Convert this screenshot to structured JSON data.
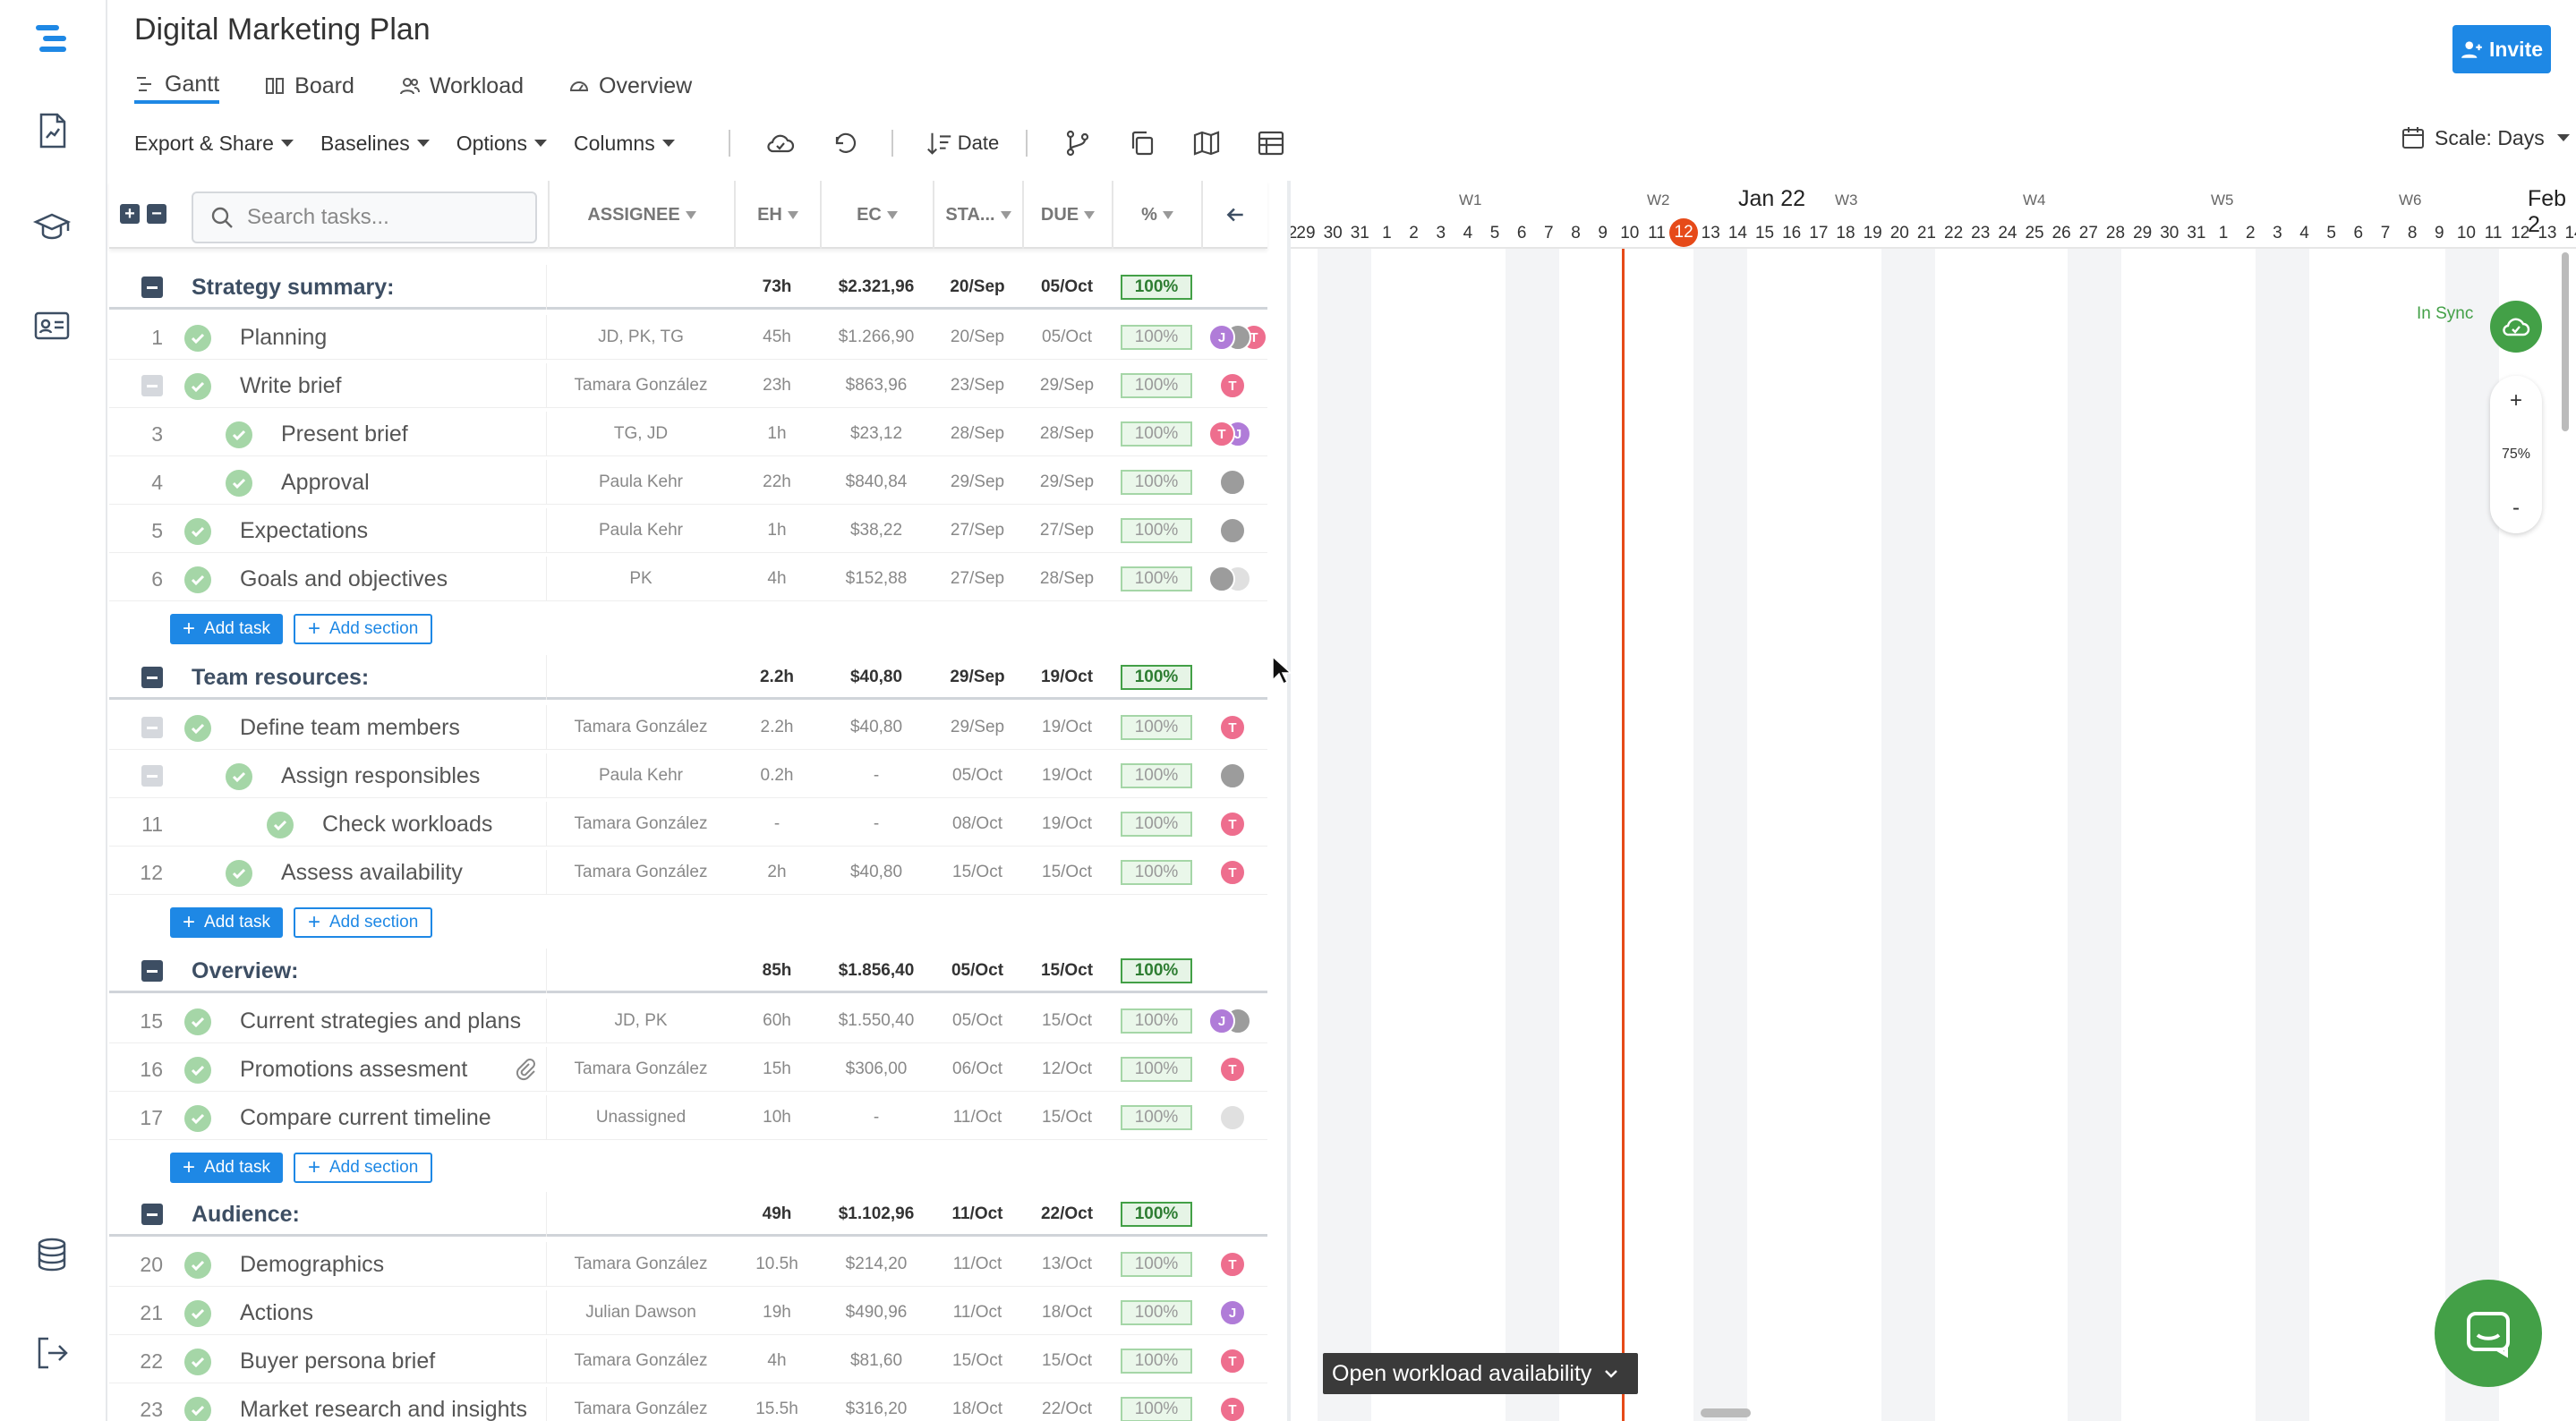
{
  "app": {
    "title": "Digital Marketing Plan",
    "invite_label": "Invite"
  },
  "tabs": [
    {
      "label": "Gantt",
      "active": true
    },
    {
      "label": "Board",
      "active": false
    },
    {
      "label": "Workload",
      "active": false
    },
    {
      "label": "Overview",
      "active": false
    }
  ],
  "toolbar": {
    "export_label": "Export & Share",
    "baselines_label": "Baselines",
    "options_label": "Options",
    "columns_label": "Columns",
    "sort_label": "Date",
    "scale_label": "Scale: Days"
  },
  "grid": {
    "search_placeholder": "Search tasks...",
    "columns": {
      "assignee": "ASSIGNEE",
      "eh": "EH",
      "ec": "EC",
      "start": "STA...",
      "due": "DUE",
      "pct": "%"
    },
    "add_task_label": "Add task",
    "add_section_label": "Add section"
  },
  "rows": [
    {
      "type": "section",
      "name": "Strategy summary:",
      "eh": "73h",
      "ec": "$2.321,96",
      "start": "20/Sep",
      "due": "05/Oct",
      "pct": "100%"
    },
    {
      "type": "task",
      "num": "1",
      "name": "Planning",
      "level": 0,
      "assignee": "JD, PK, TG",
      "eh": "45h",
      "ec": "$1.266,90",
      "start": "20/Sep",
      "due": "05/Oct",
      "pct": "100%",
      "avatars": [
        "j",
        "p",
        "t"
      ]
    },
    {
      "type": "task",
      "num": "",
      "name": "Write brief",
      "level": 0,
      "collapse": true,
      "assignee": "Tamara González",
      "eh": "23h",
      "ec": "$863,96",
      "start": "23/Sep",
      "due": "29/Sep",
      "pct": "100%",
      "avatars": [
        "t"
      ]
    },
    {
      "type": "task",
      "num": "3",
      "name": "Present brief",
      "level": 1,
      "assignee": "TG, JD",
      "eh": "1h",
      "ec": "$23,12",
      "start": "28/Sep",
      "due": "28/Sep",
      "pct": "100%",
      "avatars": [
        "t",
        "j"
      ]
    },
    {
      "type": "task",
      "num": "4",
      "name": "Approval",
      "level": 1,
      "assignee": "Paula Kehr",
      "eh": "22h",
      "ec": "$840,84",
      "start": "29/Sep",
      "due": "29/Sep",
      "pct": "100%",
      "avatars": [
        "p"
      ]
    },
    {
      "type": "task",
      "num": "5",
      "name": "Expectations",
      "level": 0,
      "assignee": "Paula Kehr",
      "eh": "1h",
      "ec": "$38,22",
      "start": "27/Sep",
      "due": "27/Sep",
      "pct": "100%",
      "avatars": [
        "p"
      ]
    },
    {
      "type": "task",
      "num": "6",
      "name": "Goals and objectives",
      "level": 0,
      "assignee": "PK",
      "eh": "4h",
      "ec": "$152,88",
      "start": "27/Sep",
      "due": "28/Sep",
      "pct": "100%",
      "avatars": [
        "p",
        "u"
      ]
    },
    {
      "type": "add"
    },
    {
      "type": "section",
      "name": "Team resources:",
      "eh": "2.2h",
      "ec": "$40,80",
      "start": "29/Sep",
      "due": "19/Oct",
      "pct": "100%"
    },
    {
      "type": "task",
      "num": "",
      "name": "Define team members",
      "level": 0,
      "collapse": true,
      "assignee": "Tamara González",
      "eh": "2.2h",
      "ec": "$40,80",
      "start": "29/Sep",
      "due": "19/Oct",
      "pct": "100%",
      "avatars": [
        "t"
      ]
    },
    {
      "type": "task",
      "num": "",
      "name": "Assign responsibles",
      "level": 1,
      "collapse": true,
      "assignee": "Paula Kehr",
      "eh": "0.2h",
      "ec": "-",
      "start": "05/Oct",
      "due": "19/Oct",
      "pct": "100%",
      "avatars": [
        "p"
      ]
    },
    {
      "type": "task",
      "num": "11",
      "name": "Check workloads",
      "level": 2,
      "assignee": "Tamara González",
      "eh": "-",
      "ec": "-",
      "start": "08/Oct",
      "due": "19/Oct",
      "pct": "100%",
      "avatars": [
        "t"
      ]
    },
    {
      "type": "task",
      "num": "12",
      "name": "Assess availability",
      "level": 1,
      "assignee": "Tamara González",
      "eh": "2h",
      "ec": "$40,80",
      "start": "15/Oct",
      "due": "15/Oct",
      "pct": "100%",
      "avatars": [
        "t"
      ]
    },
    {
      "type": "add"
    },
    {
      "type": "section",
      "name": "Overview:",
      "eh": "85h",
      "ec": "$1.856,40",
      "start": "05/Oct",
      "due": "15/Oct",
      "pct": "100%"
    },
    {
      "type": "task",
      "num": "15",
      "name": "Current strategies and plans",
      "level": 0,
      "assignee": "JD, PK",
      "eh": "60h",
      "ec": "$1.550,40",
      "start": "05/Oct",
      "due": "15/Oct",
      "pct": "100%",
      "avatars": [
        "j",
        "p"
      ]
    },
    {
      "type": "task",
      "num": "16",
      "name": "Promotions assesment",
      "level": 0,
      "attachment": true,
      "assignee": "Tamara González",
      "eh": "15h",
      "ec": "$306,00",
      "start": "06/Oct",
      "due": "12/Oct",
      "pct": "100%",
      "avatars": [
        "t"
      ]
    },
    {
      "type": "task",
      "num": "17",
      "name": "Compare current timeline",
      "level": 0,
      "assignee": "Unassigned",
      "eh": "10h",
      "ec": "-",
      "start": "11/Oct",
      "due": "15/Oct",
      "pct": "100%",
      "avatars": [
        "u"
      ]
    },
    {
      "type": "add"
    },
    {
      "type": "section",
      "name": "Audience:",
      "eh": "49h",
      "ec": "$1.102,96",
      "start": "11/Oct",
      "due": "22/Oct",
      "pct": "100%"
    },
    {
      "type": "task",
      "num": "20",
      "name": "Demographics",
      "level": 0,
      "assignee": "Tamara González",
      "eh": "10.5h",
      "ec": "$214,20",
      "start": "11/Oct",
      "due": "13/Oct",
      "pct": "100%",
      "avatars": [
        "t"
      ]
    },
    {
      "type": "task",
      "num": "21",
      "name": "Actions",
      "level": 0,
      "assignee": "Julian Dawson",
      "eh": "19h",
      "ec": "$490,96",
      "start": "11/Oct",
      "due": "18/Oct",
      "pct": "100%",
      "avatars": [
        "j"
      ]
    },
    {
      "type": "task",
      "num": "22",
      "name": "Buyer persona brief",
      "level": 0,
      "assignee": "Tamara González",
      "eh": "4h",
      "ec": "$81,60",
      "start": "15/Oct",
      "due": "15/Oct",
      "pct": "100%",
      "avatars": [
        "t"
      ]
    },
    {
      "type": "task",
      "num": "23",
      "name": "Market research and insights",
      "level": 0,
      "assignee": "Tamara González",
      "eh": "15.5h",
      "ec": "$316,20",
      "start": "18/Oct",
      "due": "22/Oct",
      "pct": "100%",
      "avatars": [
        "t"
      ]
    },
    {
      "type": "add"
    }
  ],
  "avatar_letters": {
    "t": "T",
    "j": "J",
    "p": "",
    "u": ""
  },
  "timeline": {
    "weeks": [
      "W1",
      "W2",
      "W3",
      "W4",
      "W5",
      "W6"
    ],
    "months": [
      "Jan 22",
      "Feb 2"
    ],
    "first_label": "2",
    "days": [
      "29",
      "30",
      "31",
      "1",
      "2",
      "3",
      "4",
      "5",
      "6",
      "7",
      "8",
      "9",
      "10",
      "11",
      "12",
      "13",
      "14",
      "15",
      "16",
      "17",
      "18",
      "19",
      "20",
      "21",
      "22",
      "23",
      "24",
      "25",
      "26",
      "27",
      "28",
      "29",
      "30",
      "31",
      "1",
      "2",
      "3",
      "4",
      "5",
      "6",
      "7",
      "8",
      "9",
      "10",
      "11",
      "12",
      "13",
      "14",
      "15"
    ],
    "today": "12",
    "sync_label": "In Sync",
    "zoom_in": "+",
    "zoom_level": "75%",
    "zoom_out": "-",
    "workload_label": "Open workload availability"
  },
  "colors": {
    "accent": "#1e88e5",
    "success": "#43a047",
    "today": "#e64a19",
    "section": "#3d4e63"
  }
}
